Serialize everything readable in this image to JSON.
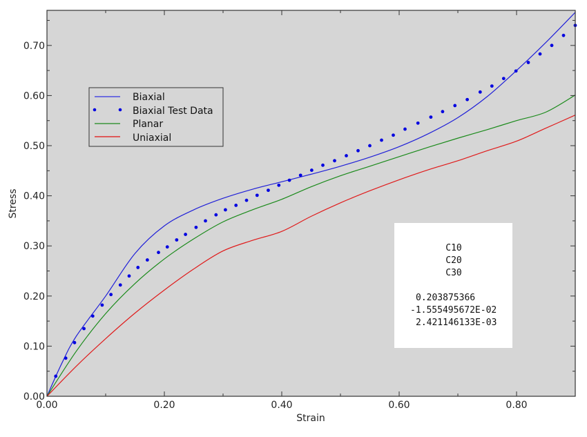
{
  "chart_data": {
    "type": "line",
    "title": "",
    "xlabel": "Strain",
    "ylabel": "Stress",
    "xlim": [
      0,
      0.9
    ],
    "ylim": [
      0,
      0.77
    ],
    "xticks": [
      "0.00",
      "0.20",
      "0.40",
      "0.60",
      "0.80"
    ],
    "xtick_values": [
      0,
      0.2,
      0.4,
      0.6,
      0.8
    ],
    "yticks": [
      "0.00",
      "0.10",
      "0.20",
      "0.30",
      "0.40",
      "0.50",
      "0.60",
      "0.70"
    ],
    "ytick_values": [
      0,
      0.1,
      0.2,
      0.3,
      0.4,
      0.5,
      0.6,
      0.7
    ],
    "grid": false,
    "legend_position": "upper-left",
    "series": [
      {
        "name": "Biaxial",
        "style": "line",
        "color": "#1f1fd8",
        "x": [
          0,
          0.025,
          0.05,
          0.1,
          0.15,
          0.2,
          0.25,
          0.3,
          0.35,
          0.4,
          0.45,
          0.5,
          0.55,
          0.6,
          0.65,
          0.7,
          0.75,
          0.8,
          0.85,
          0.9
        ],
        "y": [
          0,
          0.065,
          0.12,
          0.2,
          0.285,
          0.34,
          0.372,
          0.395,
          0.413,
          0.428,
          0.443,
          0.459,
          0.477,
          0.498,
          0.524,
          0.556,
          0.598,
          0.65,
          0.706,
          0.766
        ]
      },
      {
        "name": "Biaxial Test Data",
        "style": "points",
        "color": "#0000e0",
        "x": [
          0.015,
          0.032,
          0.047,
          0.063,
          0.078,
          0.094,
          0.109,
          0.125,
          0.14,
          0.155,
          0.171,
          0.19,
          0.205,
          0.221,
          0.236,
          0.254,
          0.27,
          0.288,
          0.304,
          0.322,
          0.34,
          0.358,
          0.377,
          0.395,
          0.413,
          0.432,
          0.451,
          0.47,
          0.49,
          0.51,
          0.53,
          0.55,
          0.57,
          0.59,
          0.61,
          0.632,
          0.654,
          0.674,
          0.695,
          0.716,
          0.738,
          0.758,
          0.778,
          0.799,
          0.82,
          0.84,
          0.86,
          0.88,
          0.9
        ],
        "y": [
          0.04,
          0.076,
          0.107,
          0.135,
          0.16,
          0.182,
          0.203,
          0.222,
          0.24,
          0.257,
          0.272,
          0.287,
          0.298,
          0.312,
          0.323,
          0.337,
          0.35,
          0.362,
          0.372,
          0.381,
          0.391,
          0.401,
          0.411,
          0.421,
          0.431,
          0.441,
          0.451,
          0.461,
          0.47,
          0.48,
          0.49,
          0.5,
          0.511,
          0.521,
          0.533,
          0.545,
          0.557,
          0.568,
          0.58,
          0.592,
          0.607,
          0.619,
          0.634,
          0.649,
          0.666,
          0.683,
          0.7,
          0.72,
          0.74
        ]
      },
      {
        "name": "Planar",
        "style": "line",
        "color": "#1a8a1a",
        "x": [
          0,
          0.05,
          0.1,
          0.15,
          0.2,
          0.25,
          0.3,
          0.35,
          0.4,
          0.45,
          0.5,
          0.55,
          0.6,
          0.65,
          0.7,
          0.75,
          0.8,
          0.85,
          0.9
        ],
        "y": [
          0,
          0.09,
          0.165,
          0.225,
          0.274,
          0.314,
          0.348,
          0.372,
          0.393,
          0.418,
          0.44,
          0.459,
          0.478,
          0.497,
          0.515,
          0.532,
          0.55,
          0.567,
          0.601
        ]
      },
      {
        "name": "Uniaxial",
        "style": "line",
        "color": "#e01a1a",
        "x": [
          0,
          0.05,
          0.1,
          0.15,
          0.2,
          0.25,
          0.3,
          0.35,
          0.4,
          0.45,
          0.5,
          0.55,
          0.6,
          0.65,
          0.7,
          0.75,
          0.8,
          0.85,
          0.9
        ],
        "y": [
          0,
          0.06,
          0.115,
          0.166,
          0.212,
          0.254,
          0.29,
          0.311,
          0.329,
          0.359,
          0.386,
          0.41,
          0.432,
          0.452,
          0.47,
          0.49,
          0.509,
          0.535,
          0.561
        ]
      }
    ],
    "annotation": {
      "labels": [
        "C10",
        "C20",
        "C30"
      ],
      "values": [
        "0.203875366",
        "-1.555495672E-02",
        "2.421146133E-03"
      ]
    }
  },
  "colors": {
    "plot_bg": "#d6d6d6",
    "frame": "#333333"
  }
}
